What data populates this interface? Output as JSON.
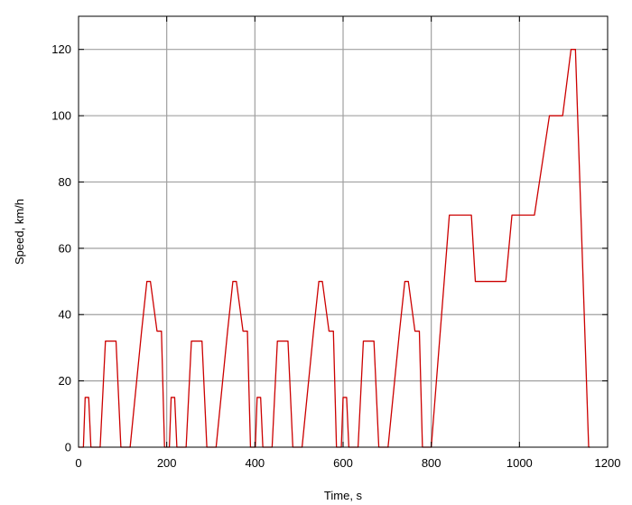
{
  "chart_data": {
    "type": "line",
    "title": "",
    "xlabel": "Time, s",
    "ylabel": "Speed, km/h",
    "xlim": [
      0,
      1200
    ],
    "ylim": [
      0,
      130
    ],
    "xticks": [
      0,
      200,
      400,
      600,
      800,
      1000,
      1200
    ],
    "yticks": [
      0,
      20,
      40,
      60,
      80,
      100,
      120
    ],
    "grid": true,
    "series": [
      {
        "color": "#cc0000",
        "points": [
          [
            0,
            0
          ],
          [
            11,
            0
          ],
          [
            15,
            15
          ],
          [
            23,
            15
          ],
          [
            28,
            0
          ],
          [
            49,
            0
          ],
          [
            61,
            32
          ],
          [
            85,
            32
          ],
          [
            96,
            0
          ],
          [
            117,
            0
          ],
          [
            143,
            35
          ],
          [
            155,
            50
          ],
          [
            163,
            50
          ],
          [
            178,
            35
          ],
          [
            188,
            35
          ],
          [
            195,
            0
          ],
          [
            206,
            0
          ],
          [
            210,
            15
          ],
          [
            218,
            15
          ],
          [
            223,
            0
          ],
          [
            244,
            0
          ],
          [
            256,
            32
          ],
          [
            280,
            32
          ],
          [
            291,
            0
          ],
          [
            312,
            0
          ],
          [
            338,
            35
          ],
          [
            350,
            50
          ],
          [
            358,
            50
          ],
          [
            373,
            35
          ],
          [
            383,
            35
          ],
          [
            390,
            0
          ],
          [
            401,
            0
          ],
          [
            405,
            15
          ],
          [
            413,
            15
          ],
          [
            418,
            0
          ],
          [
            439,
            0
          ],
          [
            451,
            32
          ],
          [
            475,
            32
          ],
          [
            486,
            0
          ],
          [
            507,
            0
          ],
          [
            533,
            35
          ],
          [
            545,
            50
          ],
          [
            553,
            50
          ],
          [
            568,
            35
          ],
          [
            578,
            35
          ],
          [
            585,
            0
          ],
          [
            596,
            0
          ],
          [
            600,
            15
          ],
          [
            608,
            15
          ],
          [
            613,
            0
          ],
          [
            634,
            0
          ],
          [
            646,
            32
          ],
          [
            670,
            32
          ],
          [
            681,
            0
          ],
          [
            702,
            0
          ],
          [
            728,
            35
          ],
          [
            740,
            50
          ],
          [
            748,
            50
          ],
          [
            763,
            35
          ],
          [
            773,
            35
          ],
          [
            780,
            0
          ],
          [
            800,
            0
          ],
          [
            841,
            70
          ],
          [
            891,
            70
          ],
          [
            900,
            50
          ],
          [
            969,
            50
          ],
          [
            983,
            70
          ],
          [
            1034,
            70
          ],
          [
            1068,
            100
          ],
          [
            1098,
            100
          ],
          [
            1117,
            120
          ],
          [
            1127,
            120
          ],
          [
            1157,
            0
          ],
          [
            1160,
            0
          ]
        ]
      }
    ]
  }
}
